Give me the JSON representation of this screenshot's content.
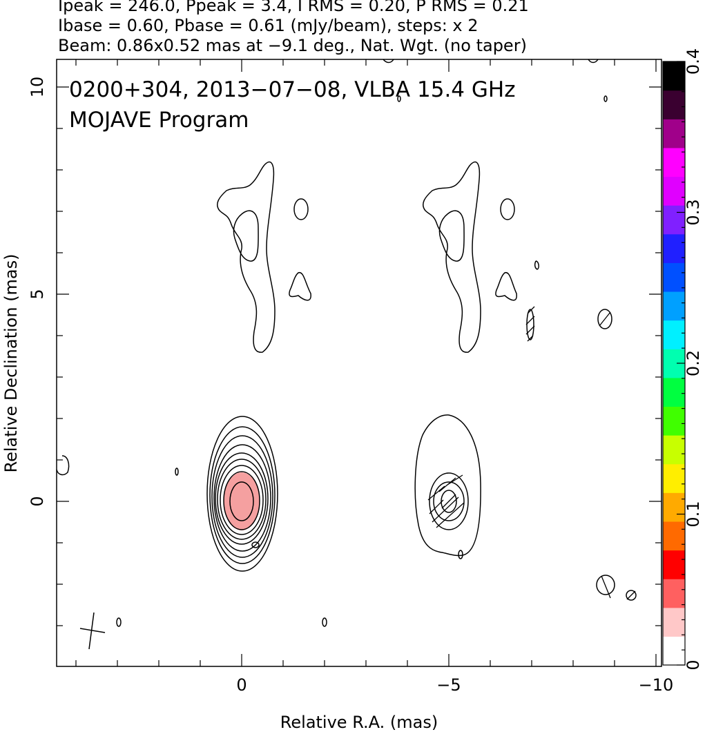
{
  "header": {
    "line1": "Ipeak = 246.0, Ppeak = 3.4, I RMS = 0.20, P RMS = 0.21",
    "line2": "Ibase = 0.60, Pbase = 0.61 (mJy/beam), steps: x 2",
    "line3": "Beam: 0.86x0.52 mas at −9.1 deg., Nat. Wgt. (no taper)"
  },
  "chart_data": {
    "type": "heatmap",
    "title": "0200+304, 2013−07−08, VLBA 15.4 GHz",
    "subtitle": "MOJAVE Program",
    "xlabel": "Relative R.A. (mas)",
    "ylabel": "Relative Declination (mas)",
    "xlim": [
      4.5,
      -10
    ],
    "ylim": [
      -4,
      10.6
    ],
    "x_ticks": [
      0,
      -5,
      -10
    ],
    "x_tick_labels": [
      "0",
      "−5",
      "−10"
    ],
    "y_ticks": [
      0,
      5,
      10
    ],
    "y_tick_labels": [
      "0",
      "5",
      "10"
    ],
    "colorbar": {
      "range": [
        0,
        0.4
      ],
      "ticks": [
        0,
        0.1,
        0.2,
        0.3,
        0.4
      ],
      "tick_labels": [
        "0",
        "0.1",
        "0.2",
        "0.3",
        "0.4"
      ],
      "colors": [
        "#ffffff",
        "#ffc8c8",
        "#ff6060",
        "#ff0000",
        "#ff6a00",
        "#ffaa00",
        "#ffee00",
        "#c8ff00",
        "#40ff00",
        "#00ff40",
        "#00ffb0",
        "#00f0ff",
        "#00a0ff",
        "#0050ff",
        "#2020ff",
        "#8020ff",
        "#e000ff",
        "#ff00ff",
        "#a0008a",
        "#3a0030",
        "#000000"
      ]
    },
    "panels": [
      {
        "name": "total-intensity",
        "center_x": 0,
        "center_y": 0
      },
      {
        "name": "polarization",
        "center_x": -5,
        "center_y": 0
      }
    ],
    "core_color": "#f5a0a0",
    "grid": false
  }
}
